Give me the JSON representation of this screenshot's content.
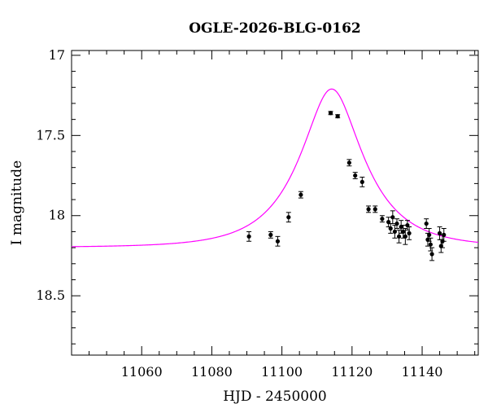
{
  "chart_data": {
    "type": "scatter",
    "title": "OGLE-2026-BLG-0162",
    "xlabel": "HJD - 2450000",
    "ylabel": "I magnitude",
    "xlim": [
      11040,
      11156
    ],
    "ylim": [
      18.87,
      16.97
    ],
    "y_inverted": true,
    "grid": false,
    "legend": "none",
    "x_ticks": [
      11060,
      11080,
      11100,
      11120,
      11140
    ],
    "y_ticks": [
      17,
      17.5,
      18,
      18.5
    ],
    "colors": {
      "model": "#ff00ff",
      "points": "#000000",
      "axes": "#000000"
    },
    "model_curve": {
      "type": "microlensing",
      "t0": 11114.2,
      "tE": 16.7,
      "u0": 0.43,
      "baseline_mag": 18.198
    },
    "series": [
      {
        "x": [
          11090.6,
          11096.8,
          11098.8,
          11101.9,
          11105.4,
          11113.9,
          11115.9,
          11119.2,
          11120.9,
          11122.9,
          11124.7,
          11126.6,
          11128.6,
          11130.4,
          11131.0,
          11131.6,
          11132.2,
          11132.8,
          11133.4,
          11134.0,
          11134.6,
          11135.2,
          11135.8,
          11136.3,
          11141.2,
          11141.6,
          11142.0,
          11142.4,
          11142.8,
          11145.0,
          11145.4,
          11145.8,
          11146.2
        ],
        "y": [
          18.13,
          18.12,
          18.16,
          18.01,
          17.87,
          17.36,
          17.38,
          17.67,
          17.75,
          17.79,
          17.96,
          17.96,
          18.02,
          18.04,
          18.08,
          18.01,
          18.1,
          18.05,
          18.13,
          18.07,
          18.1,
          18.13,
          18.06,
          18.11,
          18.05,
          18.15,
          18.12,
          18.18,
          18.24,
          18.11,
          18.19,
          18.16,
          18.12
        ],
        "err": [
          0.03,
          0.02,
          0.03,
          0.03,
          0.02,
          0.01,
          0.01,
          0.02,
          0.02,
          0.03,
          0.02,
          0.02,
          0.02,
          0.03,
          0.03,
          0.04,
          0.04,
          0.03,
          0.04,
          0.04,
          0.04,
          0.05,
          0.03,
          0.04,
          0.03,
          0.04,
          0.04,
          0.04,
          0.04,
          0.04,
          0.04,
          0.04,
          0.04
        ]
      }
    ]
  }
}
